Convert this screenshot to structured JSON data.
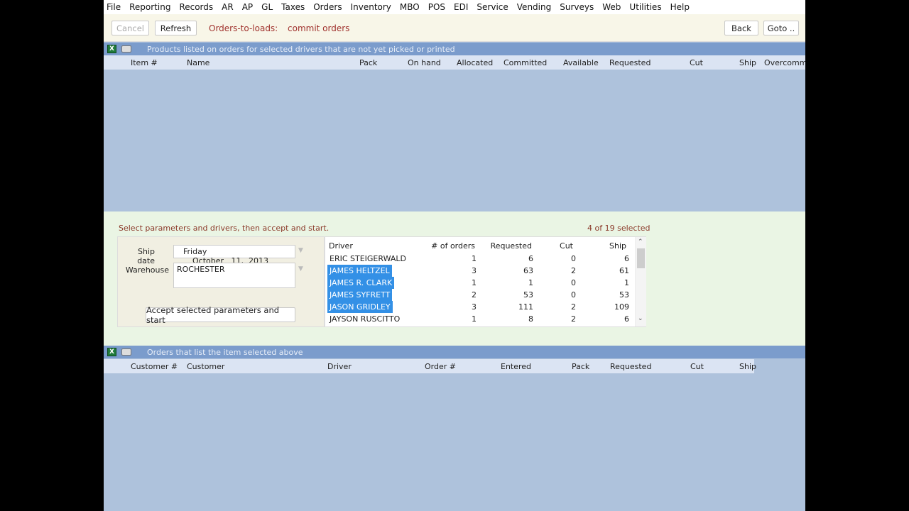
{
  "menu": [
    "File",
    "Reporting",
    "Records",
    "AR",
    "AP",
    "GL",
    "Taxes",
    "Orders",
    "Inventory",
    "MBO",
    "POS",
    "EDI",
    "Service",
    "Vending",
    "Surveys",
    "Web",
    "Utilities",
    "Help"
  ],
  "toolbar": {
    "cancel": "Cancel",
    "refresh": "Refresh",
    "title": "Orders-to-loads:",
    "subtitle": "commit orders",
    "back": "Back",
    "goto": "Goto .."
  },
  "products": {
    "title": "Products listed on orders for selected drivers that are not yet picked or printed",
    "columns": [
      "Item #",
      "Name",
      "Pack",
      "On hand",
      "Allocated",
      "Committed",
      "Available",
      "Requested",
      "Cut",
      "Ship",
      "Overcommit"
    ]
  },
  "params": {
    "hint": "Select parameters and drivers, then accept and start.",
    "selected_count": "4 of 19 selected",
    "ship_date_label": "Ship date",
    "ship_day": "Friday",
    "ship_date": "October   11,  2013",
    "warehouse_label": "Warehouse",
    "warehouse": "ROCHESTER",
    "accept": "Accept selected parameters and start"
  },
  "drivers": {
    "columns": [
      "Driver",
      "# of orders",
      "Requested",
      "Cut",
      "Ship"
    ],
    "rows": [
      {
        "driver": "ERIC STEIGERWALD",
        "orders": "1",
        "requested": "6",
        "cut": "0",
        "ship": "6",
        "selected": false
      },
      {
        "driver": "JAMES HELTZEL",
        "orders": "3",
        "requested": "63",
        "cut": "2",
        "ship": "61",
        "selected": true
      },
      {
        "driver": "JAMES R. CLARK",
        "orders": "1",
        "requested": "1",
        "cut": "0",
        "ship": "1",
        "selected": true
      },
      {
        "driver": "JAMES SYFRETT",
        "orders": "2",
        "requested": "53",
        "cut": "0",
        "ship": "53",
        "selected": true
      },
      {
        "driver": "JASON GRIDLEY",
        "orders": "3",
        "requested": "111",
        "cut": "2",
        "ship": "109",
        "selected": true
      },
      {
        "driver": "JAYSON RUSCITTO",
        "orders": "1",
        "requested": "8",
        "cut": "2",
        "ship": "6",
        "selected": false
      }
    ]
  },
  "orders": {
    "title": "Orders that list the item selected above",
    "columns": [
      "Customer #",
      "Customer",
      "Driver",
      "Order #",
      "Entered",
      "Pack",
      "Requested",
      "Cut",
      "Ship"
    ]
  },
  "colors": {
    "accent": "#3390e6",
    "section_bar": "#7b9ccc",
    "grid_bg": "#aec2dc",
    "panel_bg": "#eaf5e4",
    "title_text": "#a0322e"
  }
}
